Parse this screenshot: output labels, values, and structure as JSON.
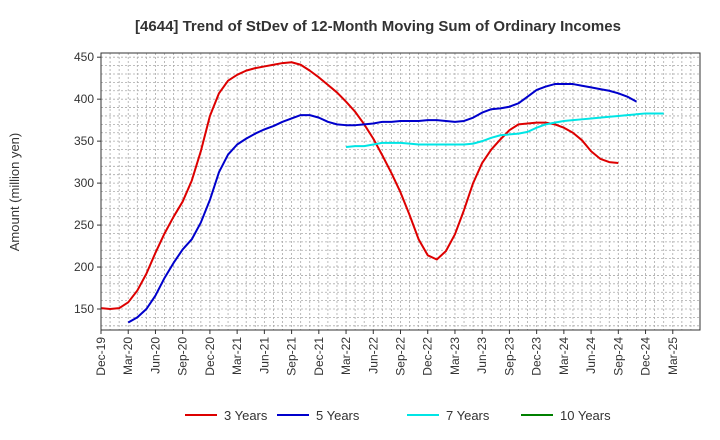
{
  "chart_data": {
    "type": "line",
    "title": "[4644]  Trend of StDev of 12-Month Moving Sum of Ordinary Incomes",
    "xlabel": "",
    "ylabel": "Amount (million yen)",
    "ylim": [
      125,
      455
    ],
    "yticks": [
      150,
      200,
      250,
      300,
      350,
      400,
      450
    ],
    "xlim": [
      0,
      66
    ],
    "grid": true,
    "x_ticks": [
      {
        "label": "Dec-19",
        "i": 0
      },
      {
        "label": "Mar-20",
        "i": 3
      },
      {
        "label": "Jun-20",
        "i": 6
      },
      {
        "label": "Sep-20",
        "i": 9
      },
      {
        "label": "Dec-20",
        "i": 12
      },
      {
        "label": "Mar-21",
        "i": 15
      },
      {
        "label": "Jun-21",
        "i": 18
      },
      {
        "label": "Sep-21",
        "i": 21
      },
      {
        "label": "Dec-21",
        "i": 24
      },
      {
        "label": "Mar-22",
        "i": 27
      },
      {
        "label": "Jun-22",
        "i": 30
      },
      {
        "label": "Sep-22",
        "i": 33
      },
      {
        "label": "Dec-22",
        "i": 36
      },
      {
        "label": "Mar-23",
        "i": 39
      },
      {
        "label": "Jun-23",
        "i": 42
      },
      {
        "label": "Sep-23",
        "i": 45
      },
      {
        "label": "Dec-23",
        "i": 48
      },
      {
        "label": "Mar-24",
        "i": 51
      },
      {
        "label": "Jun-24",
        "i": 54
      },
      {
        "label": "Sep-24",
        "i": 57
      },
      {
        "label": "Dec-24",
        "i": 60
      },
      {
        "label": "Mar-25",
        "i": 63
      }
    ],
    "series": [
      {
        "name": "3 Years",
        "color": "#dd0000",
        "start": 0,
        "values": [
          151,
          150,
          151,
          158,
          172,
          192,
          217,
          240,
          260,
          278,
          303,
          338,
          380,
          407,
          422,
          429,
          434,
          437,
          439,
          441,
          443,
          444,
          441,
          434,
          426,
          417,
          408,
          397,
          385,
          370,
          353,
          333,
          312,
          289,
          262,
          233,
          214,
          209,
          219,
          239,
          268,
          300,
          324,
          340,
          352,
          363,
          370,
          371,
          372,
          372,
          370,
          366,
          360,
          351,
          338,
          329,
          325,
          324
        ]
      },
      {
        "name": "5 Years",
        "color": "#0000cc",
        "start": 3,
        "values": [
          134,
          140,
          150,
          166,
          187,
          205,
          221,
          233,
          253,
          280,
          313,
          334,
          346,
          353,
          359,
          364,
          368,
          373,
          377,
          381,
          381,
          378,
          373,
          370,
          369,
          369,
          370,
          371,
          373,
          373,
          374,
          374,
          374,
          375,
          375,
          374,
          373,
          374,
          378,
          384,
          388,
          389,
          391,
          395,
          403,
          411,
          415,
          418,
          418,
          418,
          416,
          414,
          412,
          410,
          407,
          403,
          397
        ]
      },
      {
        "name": "7 Years",
        "color": "#00e5e5",
        "start": 27,
        "values": [
          343,
          344,
          344,
          346,
          348,
          348,
          348,
          347,
          346,
          346,
          346,
          346,
          346,
          346,
          347,
          350,
          354,
          357,
          358,
          359,
          361,
          366,
          370,
          372,
          374,
          375,
          376,
          377,
          378,
          379,
          380,
          381,
          382,
          383,
          383,
          383
        ]
      },
      {
        "name": "10 Years",
        "color": "#008000",
        "start": 0,
        "values": []
      }
    ]
  }
}
